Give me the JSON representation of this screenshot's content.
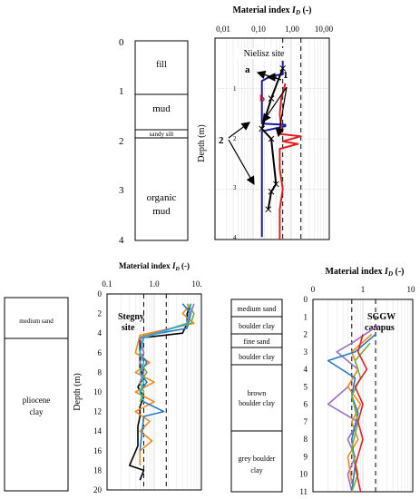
{
  "panels": {
    "nielisz": {
      "title": "Material index Iᴅ (-)",
      "title_prefix": "Material index ",
      "title_symbol": "I",
      "title_sub": "D",
      "title_suffix": " (-)",
      "site": "Nielisz site",
      "ylabel": "Depth (m)",
      "x_ticks": [
        "0,01",
        "0,10",
        "1,00",
        "10,00"
      ],
      "y_ticks": [
        "0",
        "1",
        "2",
        "3",
        "4"
      ],
      "inner_y_ticks": [
        "1",
        "2",
        "3",
        "4"
      ],
      "labels": {
        "a": "a",
        "b": "b",
        "one": "1",
        "two": "2"
      }
    },
    "stegny": {
      "title_prefix": "Material index ",
      "title_symbol": "I",
      "title_sub": "D",
      "title_suffix": " (-)",
      "site_line1": "Stegny",
      "site_line2": "site",
      "ylabel": "Depth (m)",
      "x_ticks": [
        "0.1",
        "1.0",
        "10."
      ],
      "y_ticks": [
        "0",
        "2",
        "4",
        "6",
        "8",
        "10",
        "12",
        "14",
        "16",
        "18",
        "20"
      ]
    },
    "sggw": {
      "title_prefix": "Material index ",
      "title_symbol": "I",
      "title_sub": "D",
      "title_suffix": " (-)",
      "site_line1": "SGGW",
      "site_line2": "campus",
      "x_ticks": [
        "0",
        "1",
        "10"
      ],
      "y_ticks": [
        "0",
        "1",
        "2",
        "3",
        "4",
        "5",
        "6",
        "7",
        "8",
        "9",
        "10",
        "11"
      ]
    }
  },
  "soil_columns": {
    "nielisz": {
      "depth_ticks": [
        "0",
        "1",
        "2",
        "3",
        "4"
      ],
      "layers": [
        "fill",
        "mud",
        "sandy silt",
        "organic",
        "mud"
      ]
    },
    "stegny": {
      "layers": [
        "medium sand",
        "pliocene",
        "clay"
      ]
    },
    "sggw": {
      "layers": [
        "medium sand",
        "boulder clay",
        "fine sand",
        "boulder clay",
        "brown",
        "boulder clay",
        "grey boulder",
        "clay"
      ]
    }
  },
  "chart_data": [
    {
      "type": "line",
      "title": "Material index ID (-)",
      "site": "Nielisz site",
      "xscale": "log",
      "xlim": [
        0.01,
        10
      ],
      "ylim": [
        4,
        0
      ],
      "ylabel": "Depth (m)",
      "reference_lines_x": [
        0.6,
        1.8
      ],
      "series": [
        {
          "name": "a",
          "color": "#1a1aa0",
          "x": [
            0.6,
            0.6,
            0.3,
            0.17,
            0.17,
            0.7,
            0.7,
            0.17,
            0.17,
            0.17
          ],
          "y": [
            0.45,
            0.72,
            0.75,
            0.85,
            1.7,
            1.72,
            1.75,
            1.85,
            3.0,
            3.95
          ]
        },
        {
          "name": "b",
          "color": "#e02020",
          "x": [
            0.7,
            0.55,
            0.5,
            0.55,
            0.45,
            1.8,
            0.6,
            1.5,
            0.5,
            0.5,
            0.6,
            0.5,
            0.5
          ],
          "y": [
            0.9,
            1.2,
            1.5,
            1.8,
            1.9,
            1.95,
            2.05,
            2.1,
            2.2,
            2.6,
            3.0,
            3.4,
            4.0
          ]
        },
        {
          "name": "",
          "color": "#000000",
          "x": [
            0.6,
            0.3,
            0.17,
            0.3,
            0.4,
            0.3,
            0.25
          ],
          "y": [
            0.6,
            1.2,
            1.8,
            2.0,
            2.9,
            3.05,
            3.4
          ]
        }
      ]
    },
    {
      "type": "line",
      "site": "Stegny site",
      "xscale": "log",
      "xlim": [
        0.1,
        10
      ],
      "ylim": [
        20,
        0
      ],
      "ylabel": "Depth (m)",
      "reference_lines_x": [
        0.6,
        1.8
      ],
      "series": [
        {
          "color": "#000000",
          "x": [
            6,
            5,
            5,
            4,
            0.5,
            0.5,
            0.5,
            0.5,
            0.6,
            0.45,
            0.6,
            0.5,
            0.5,
            0.45,
            0.45,
            0.45,
            0.3,
            0.6,
            0.5
          ],
          "y": [
            1,
            2,
            3,
            4,
            4.5,
            5.5,
            6.5,
            7.5,
            8.5,
            9.5,
            10.5,
            11.5,
            12.5,
            13.5,
            14.5,
            15.5,
            17.5,
            18,
            19
          ]
        },
        {
          "color": "#f08a20",
          "x": [
            6,
            4,
            7,
            0.5,
            0.4,
            0.8,
            0.4,
            1,
            0.4,
            1,
            0.4,
            0.8,
            0.5,
            0.9,
            0.5,
            0.5
          ],
          "y": [
            1,
            2,
            3,
            4.2,
            6,
            7,
            8,
            9,
            10,
            11,
            12,
            13,
            14,
            15,
            16,
            17.5
          ]
        },
        {
          "color": "#2a7ac0",
          "x": [
            4,
            6,
            5,
            0.6,
            0.5,
            0.7,
            0.5,
            0.7,
            0.5,
            0.6,
            1.6,
            0.6,
            0.5
          ],
          "y": [
            1,
            2,
            3.5,
            4.3,
            6,
            7,
            8,
            9,
            10,
            11,
            12,
            12.5,
            16
          ]
        },
        {
          "color": "#70b040",
          "x": [
            5,
            7,
            6,
            0.5,
            0.6,
            0.5,
            0.7,
            0.5,
            0.6,
            0.5
          ],
          "y": [
            1,
            2,
            3,
            4.4,
            6,
            7,
            8,
            9,
            10,
            11
          ]
        },
        {
          "color": "#9a70c0",
          "x": [
            7,
            5,
            0.5,
            0.6,
            0.5,
            0.6,
            0.5
          ],
          "y": [
            1,
            3,
            4.5,
            6,
            7,
            8,
            9
          ]
        },
        {
          "color": "#30b0c0",
          "x": [
            6,
            5,
            0.6,
            0.5,
            0.6,
            0.5,
            0.6,
            0.5,
            0.6
          ],
          "y": [
            1,
            3,
            4.5,
            6,
            7,
            8,
            9,
            10,
            11
          ]
        }
      ]
    },
    {
      "type": "line",
      "site": "SGGW campus",
      "xscale": "log",
      "xlim": [
        0.1,
        10
      ],
      "ylim": [
        11,
        0
      ],
      "reference_lines_x": [
        0.6,
        1.8
      ],
      "series": [
        {
          "color": "#9a70c0",
          "x": [
            2,
            0.6,
            0.3,
            0.8,
            0.5,
            0.2,
            0.8,
            0.5,
            0.7,
            0.5,
            0.6
          ],
          "y": [
            1.5,
            2.5,
            3,
            4,
            5,
            6,
            7,
            8,
            9,
            10,
            11
          ]
        },
        {
          "color": "#f08a20",
          "x": [
            1.5,
            0.6,
            0.8,
            0.5,
            0.9,
            0.6,
            0.8,
            0.5,
            0.6
          ],
          "y": [
            2,
            3,
            4,
            5,
            6,
            7,
            8,
            9,
            10.5
          ]
        },
        {
          "color": "#2a7ac0",
          "x": [
            1.8,
            0.7,
            0.2,
            0.7,
            0.6,
            0.8,
            0.6,
            0.7,
            0.6
          ],
          "y": [
            2,
            3,
            3.5,
            4.5,
            5.5,
            6.5,
            8,
            9.5,
            11
          ]
        },
        {
          "color": "#70b040",
          "x": [
            1.4,
            0.7,
            0.9,
            0.6,
            0.8,
            0.6,
            0.8,
            0.6
          ],
          "y": [
            2.5,
            3.5,
            4.5,
            5.5,
            7,
            8.5,
            10,
            11
          ]
        },
        {
          "color": "#e02020",
          "x": [
            1,
            0.8,
            1.2,
            0.7,
            1,
            0.8,
            1,
            0.7,
            0.9
          ],
          "y": [
            2,
            3,
            4,
            5,
            6,
            7,
            8,
            9.5,
            11
          ]
        }
      ]
    }
  ]
}
